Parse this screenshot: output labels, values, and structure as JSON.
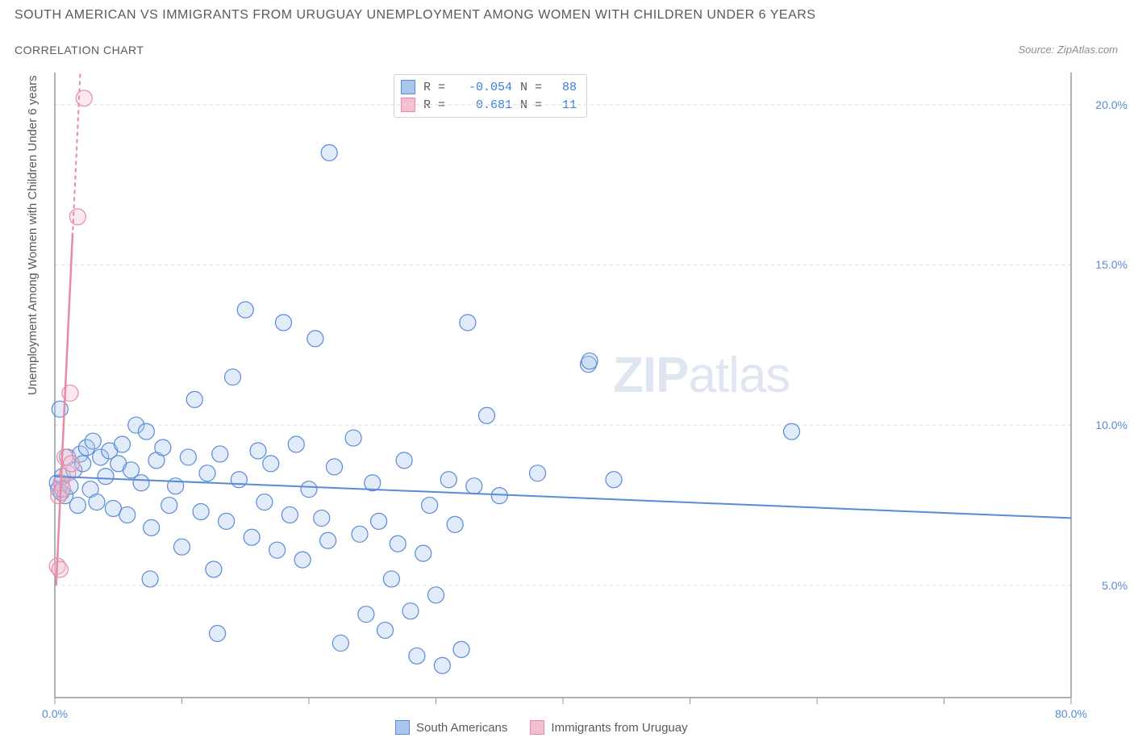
{
  "title": "SOUTH AMERICAN VS IMMIGRANTS FROM URUGUAY UNEMPLOYMENT AMONG WOMEN WITH CHILDREN UNDER 6 YEARS",
  "subtitle": "CORRELATION CHART",
  "source": "Source: ZipAtlas.com",
  "y_axis_title": "Unemployment Among Women with Children Under 6 years",
  "watermark_zip": "ZIP",
  "watermark_atlas": "atlas",
  "chart": {
    "type": "scatter",
    "xlim": [
      0,
      80
    ],
    "ylim": [
      1.5,
      21
    ],
    "x_ticks": [
      0,
      10,
      20,
      30,
      40,
      50,
      60,
      70,
      80
    ],
    "x_tick_labels_shown": {
      "0": "0.0%",
      "80": "80.0%"
    },
    "y_ticks": [
      5,
      10,
      15,
      20
    ],
    "y_tick_labels": {
      "5": "5.0%",
      "10": "10.0%",
      "15": "15.0%",
      "20": "20.0%"
    },
    "grid_color": "#d8dde3",
    "grid_dash": "4,4",
    "axis_color": "#9099a3",
    "marker_radius": 10,
    "marker_stroke_width": 1.2,
    "marker_fill_opacity": 0.35,
    "series": [
      {
        "name": "South Americans",
        "color_stroke": "#5a8ad8",
        "color_fill": "#a9c6ee",
        "R": "-0.054",
        "N": "88",
        "trend": {
          "x1": 0,
          "y1": 8.4,
          "x2": 80,
          "y2": 7.1,
          "width": 2,
          "dash": "none"
        },
        "points": [
          [
            0.2,
            8.2
          ],
          [
            0.3,
            8.0
          ],
          [
            0.4,
            10.5
          ],
          [
            0.5,
            7.9
          ],
          [
            0.6,
            8.4
          ],
          [
            0.8,
            7.8
          ],
          [
            1.0,
            9.0
          ],
          [
            1.2,
            8.1
          ],
          [
            1.5,
            8.6
          ],
          [
            1.8,
            7.5
          ],
          [
            2.0,
            9.1
          ],
          [
            2.2,
            8.8
          ],
          [
            2.5,
            9.3
          ],
          [
            2.8,
            8.0
          ],
          [
            3.0,
            9.5
          ],
          [
            3.3,
            7.6
          ],
          [
            3.6,
            9.0
          ],
          [
            4.0,
            8.4
          ],
          [
            4.3,
            9.2
          ],
          [
            4.6,
            7.4
          ],
          [
            5.0,
            8.8
          ],
          [
            5.3,
            9.4
          ],
          [
            5.7,
            7.2
          ],
          [
            6.0,
            8.6
          ],
          [
            6.4,
            10.0
          ],
          [
            6.8,
            8.2
          ],
          [
            7.2,
            9.8
          ],
          [
            7.6,
            6.8
          ],
          [
            8.0,
            8.9
          ],
          [
            8.5,
            9.3
          ],
          [
            9.0,
            7.5
          ],
          [
            9.5,
            8.1
          ],
          [
            10.0,
            6.2
          ],
          [
            10.5,
            9.0
          ],
          [
            11.0,
            10.8
          ],
          [
            11.5,
            7.3
          ],
          [
            12.0,
            8.5
          ],
          [
            12.5,
            5.5
          ],
          [
            13.0,
            9.1
          ],
          [
            13.5,
            7.0
          ],
          [
            14.0,
            11.5
          ],
          [
            14.5,
            8.3
          ],
          [
            15.0,
            13.6
          ],
          [
            15.5,
            6.5
          ],
          [
            16.0,
            9.2
          ],
          [
            16.5,
            7.6
          ],
          [
            17.0,
            8.8
          ],
          [
            17.5,
            6.1
          ],
          [
            18.0,
            13.2
          ],
          [
            18.5,
            7.2
          ],
          [
            19.0,
            9.4
          ],
          [
            19.5,
            5.8
          ],
          [
            20.0,
            8.0
          ],
          [
            20.5,
            12.7
          ],
          [
            21.0,
            7.1
          ],
          [
            21.5,
            6.4
          ],
          [
            22.0,
            8.7
          ],
          [
            22.5,
            3.2
          ],
          [
            21.6,
            18.5
          ],
          [
            23.5,
            9.6
          ],
          [
            24.0,
            6.6
          ],
          [
            24.5,
            4.1
          ],
          [
            25.0,
            8.2
          ],
          [
            25.5,
            7.0
          ],
          [
            26.0,
            3.6
          ],
          [
            26.5,
            5.2
          ],
          [
            27.0,
            6.3
          ],
          [
            27.5,
            8.9
          ],
          [
            28.0,
            4.2
          ],
          [
            28.5,
            2.8
          ],
          [
            29.0,
            6.0
          ],
          [
            29.5,
            7.5
          ],
          [
            30.0,
            4.7
          ],
          [
            30.5,
            2.5
          ],
          [
            31.0,
            8.3
          ],
          [
            31.5,
            6.9
          ],
          [
            32.0,
            3.0
          ],
          [
            32.5,
            13.2
          ],
          [
            33.0,
            8.1
          ],
          [
            34.0,
            10.3
          ],
          [
            35.0,
            7.8
          ],
          [
            38.0,
            8.5
          ],
          [
            42.0,
            11.9
          ],
          [
            42.1,
            12.0
          ],
          [
            44.0,
            8.3
          ],
          [
            58.0,
            9.8
          ],
          [
            7.5,
            5.2
          ],
          [
            12.8,
            3.5
          ]
        ]
      },
      {
        "name": "Immigrants from Uruguay",
        "color_stroke": "#e68aa6",
        "color_fill": "#f4c0d1",
        "R": "0.681",
        "N": "11",
        "trend": {
          "x1": 0.1,
          "y1": 5.0,
          "x2": 2.0,
          "y2": 21.0,
          "width": 2,
          "dash": "5,4"
        },
        "points": [
          [
            0.2,
            5.6
          ],
          [
            0.3,
            7.8
          ],
          [
            0.5,
            8.2
          ],
          [
            0.6,
            8.0
          ],
          [
            0.8,
            9.0
          ],
          [
            1.0,
            8.5
          ],
          [
            1.2,
            11.0
          ],
          [
            1.3,
            8.8
          ],
          [
            1.8,
            16.5
          ],
          [
            2.3,
            20.2
          ],
          [
            0.4,
            5.5
          ]
        ]
      }
    ]
  },
  "corr_legend": {
    "r_label": "R =",
    "n_label": "N ="
  },
  "series_legend_labels": [
    "South Americans",
    "Immigrants from Uruguay"
  ]
}
